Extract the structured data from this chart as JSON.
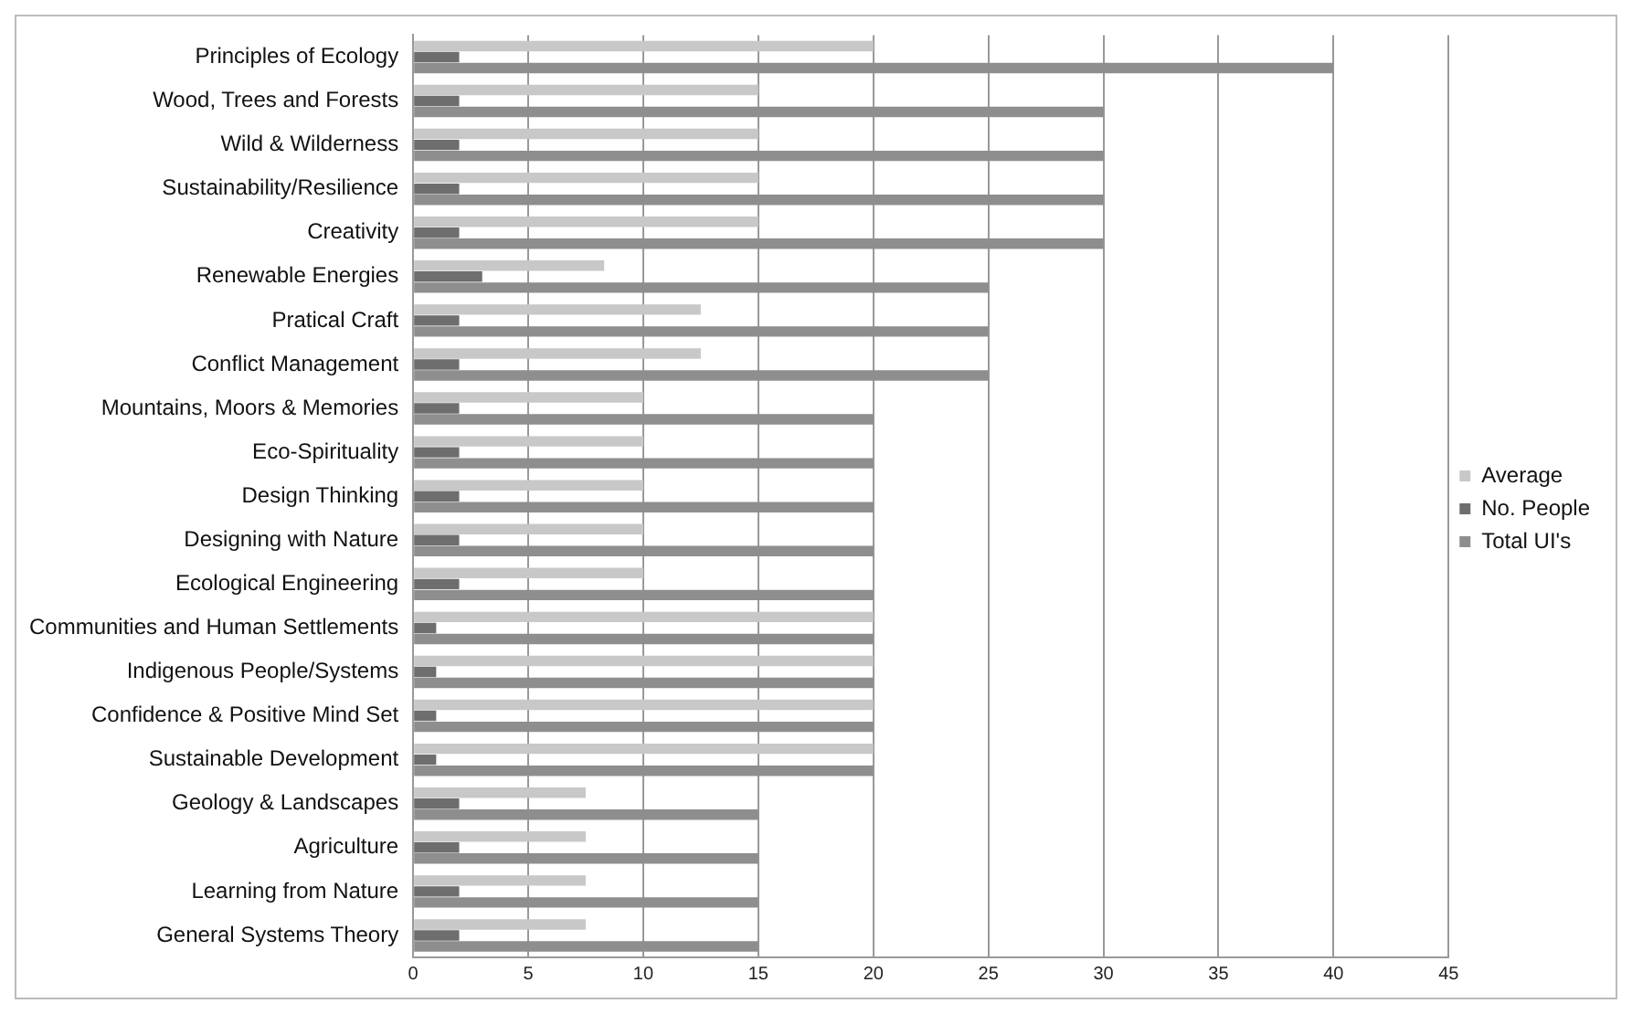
{
  "chart_data": {
    "type": "bar",
    "orientation": "horizontal",
    "categories": [
      "Principles of Ecology",
      "Wood, Trees and Forests",
      "Wild & Wilderness",
      "Sustainability/Resilience",
      "Creativity",
      "Renewable Energies",
      "Pratical Craft",
      "Conflict Management",
      "Mountains, Moors & Memories",
      "Eco-Spirituality",
      "Design Thinking",
      "Designing with Nature",
      "Ecological Engineering",
      "Communities and Human Settlements",
      "Indigenous People/Systems",
      "Confidence & Positive Mind Set",
      "Sustainable Development",
      "Geology & Landscapes",
      "Agriculture",
      "Learning from Nature",
      "General Systems Theory"
    ],
    "series": [
      {
        "name": "Average",
        "color": "#c8c8c8",
        "values": [
          20,
          15,
          15,
          15,
          15,
          8.3,
          12.5,
          12.5,
          10,
          10,
          10,
          10,
          10,
          20,
          20,
          20,
          20,
          7.5,
          7.5,
          7.5,
          7.5
        ]
      },
      {
        "name": "No. People",
        "color": "#6e6e6e",
        "values": [
          2,
          2,
          2,
          2,
          2,
          3,
          2,
          2,
          2,
          2,
          2,
          2,
          2,
          1,
          1,
          1,
          1,
          2,
          2,
          2,
          2
        ]
      },
      {
        "name": "Total UI's",
        "color": "#8e8e8e",
        "values": [
          40,
          30,
          30,
          30,
          30,
          25,
          25,
          25,
          20,
          20,
          20,
          20,
          20,
          20,
          20,
          20,
          20,
          15,
          15,
          15,
          15
        ]
      }
    ],
    "xlim": [
      0,
      45
    ],
    "xticks": [
      0,
      5,
      10,
      15,
      20,
      25,
      30,
      35,
      40,
      45
    ],
    "grid": "x",
    "legend": "right"
  }
}
